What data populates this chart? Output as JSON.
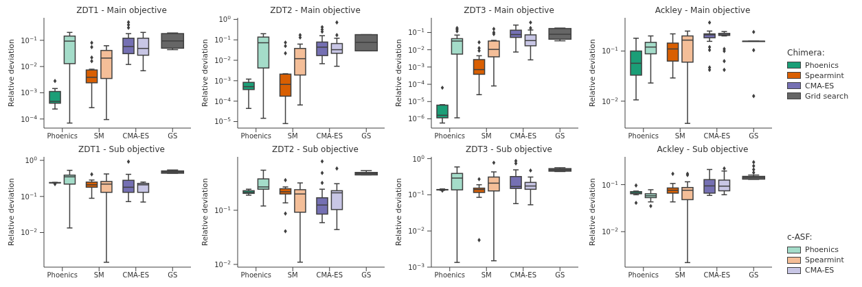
{
  "chart_data": [
    {
      "type": "box",
      "title": "ZDT1 - Main objective",
      "ylabel": "Relative deviation",
      "categories": [
        "Phoenics",
        "SM",
        "CMA-ES",
        "GS"
      ],
      "log": true,
      "ylim": [
        4.5e-05,
        0.72
      ],
      "yticks": [
        {
          "value": 0.0001,
          "label": "10$^{−4}$"
        },
        {
          "value": 0.001,
          "label": "10$^{−3}$"
        },
        {
          "value": 0.01,
          "label": "10$^{−2}$"
        },
        {
          "value": 0.1,
          "label": "10$^{−1}$"
        }
      ],
      "series": [
        {
          "color": "#1b9e77",
          "boxes": [
            {
              "low": 0.00024,
              "q1": 0.0004,
              "median": 0.00047,
              "q3": 0.00112,
              "high": 0.00145,
              "outliers": [
                0.0028
              ]
            },
            null,
            null,
            null
          ]
        },
        {
          "color": "#d95f02",
          "boxes": [
            null,
            {
              "low": 0.00027,
              "q1": 0.0024,
              "median": 0.0039,
              "q3": 0.0074,
              "high": 0.0079,
              "outliers": [
                0.08,
                0.055,
                0.022,
                0.016
              ]
            },
            null,
            null
          ]
        },
        {
          "color": "#7570b3",
          "boxes": [
            null,
            null,
            {
              "low": 0.012,
              "q1": 0.031,
              "median": 0.058,
              "q3": 0.12,
              "high": 0.18,
              "outliers": [
                0.49,
                0.39,
                0.3
              ]
            },
            null
          ]
        },
        {
          "color": "#666666",
          "boxes": [
            null,
            null,
            null,
            {
              "low": 0.044,
              "q1": 0.05,
              "median": 0.095,
              "q3": 0.18,
              "high": 0.19
            }
          ]
        },
        {
          "color": "#a4dcc9",
          "boxes": [
            {
              "low": 7e-05,
              "q1": 0.0129,
              "median": 0.093,
              "q3": 0.145,
              "high": 0.2
            },
            null,
            null,
            null
          ]
        },
        {
          "color": "#f4be98",
          "boxes": [
            null,
            {
              "low": 9.5e-05,
              "q1": 0.0035,
              "median": 0.021,
              "q3": 0.041,
              "high": 0.062
            },
            null,
            null
          ]
        },
        {
          "color": "#c8c6e5",
          "boxes": [
            null,
            null,
            {
              "low": 0.0069,
              "q1": 0.027,
              "median": 0.049,
              "q3": 0.12,
              "high": 0.2
            },
            null
          ]
        }
      ]
    },
    {
      "type": "box",
      "title": "ZDT2 - Main objective",
      "ylabel": "Relative deviation",
      "categories": [
        "Phoenics",
        "SM",
        "CMA-ES",
        "GS"
      ],
      "log": true,
      "ylim": [
        4.8e-06,
        1.2
      ],
      "yticks": [
        {
          "value": 1e-05,
          "label": "10$^{−5}$"
        },
        {
          "value": 0.0001,
          "label": "10$^{−4}$"
        },
        {
          "value": 0.001,
          "label": "10$^{−3}$"
        },
        {
          "value": 0.01,
          "label": "10$^{−2}$"
        },
        {
          "value": 0.1,
          "label": "10$^{−1}$"
        },
        {
          "value": 1,
          "label": "10$^{0}$"
        }
      ],
      "series": [
        {
          "color": "#1b9e77",
          "boxes": [
            {
              "low": 4.4e-05,
              "q1": 0.00037,
              "median": 0.00051,
              "q3": 0.00083,
              "high": 0.0012
            },
            null,
            null,
            null
          ]
        },
        {
          "color": "#d95f02",
          "boxes": [
            null,
            {
              "low": 8e-06,
              "q1": 0.000175,
              "median": 0.00066,
              "q3": 0.0021,
              "high": 0.0022,
              "outliers": [
                0.074,
                0.05,
                0.022
              ]
            },
            null,
            null
          ]
        },
        {
          "color": "#7570b3",
          "boxes": [
            null,
            null,
            {
              "low": 0.0068,
              "q1": 0.017,
              "median": 0.044,
              "q3": 0.078,
              "high": 0.16,
              "outliers": [
                0.42,
                0.32,
                0.25
              ]
            },
            null
          ]
        },
        {
          "color": "#666666",
          "boxes": [
            null,
            null,
            null,
            {
              "low": 0.029,
              "q1": 0.029,
              "median": 0.076,
              "q3": 0.18,
              "high": 0.18
            }
          ]
        },
        {
          "color": "#a4dcc9",
          "boxes": [
            {
              "low": 1.45e-05,
              "q1": 0.0042,
              "median": 0.072,
              "q3": 0.137,
              "high": 0.2
            },
            null,
            null,
            null
          ]
        },
        {
          "color": "#f4be98",
          "boxes": [
            null,
            {
              "low": 6.5e-05,
              "q1": 0.0019,
              "median": 0.012,
              "q3": 0.038,
              "high": 0.062,
              "outliers": [
                0.17,
                0.13
              ]
            },
            null,
            null
          ]
        },
        {
          "color": "#c8c6e5",
          "boxes": [
            null,
            null,
            {
              "low": 0.0051,
              "q1": 0.022,
              "median": 0.033,
              "q3": 0.066,
              "high": 0.12,
              "outliers": [
                0.71,
                0.17
              ]
            },
            null
          ]
        }
      ]
    },
    {
      "type": "box",
      "title": "ZDT3 - Main objective",
      "ylabel": "Relative deviation",
      "categories": [
        "Phoenics",
        "SM",
        "CMA-ES",
        "GS"
      ],
      "log": true,
      "ylim": [
        2.9e-07,
        0.71
      ],
      "yticks": [
        {
          "value": 1e-06,
          "label": "10$^{−6}$"
        },
        {
          "value": 1e-05,
          "label": "10$^{−5}$"
        },
        {
          "value": 0.0001,
          "label": "10$^{−4}$"
        },
        {
          "value": 0.001,
          "label": "10$^{−3}$"
        },
        {
          "value": 0.01,
          "label": "10$^{−2}$"
        },
        {
          "value": 0.1,
          "label": "10$^{−1}$"
        }
      ],
      "series": [
        {
          "color": "#1b9e77",
          "boxes": [
            {
              "low": 5.7e-07,
              "q1": 1.14e-06,
              "median": 1.6e-06,
              "q3": 6.2e-06,
              "high": 6.6e-06,
              "outliers": [
                6.3e-05
              ]
            },
            null,
            null,
            null
          ]
        },
        {
          "color": "#d95f02",
          "boxes": [
            null,
            {
              "low": 2.5e-05,
              "q1": 0.00038,
              "median": 0.00071,
              "q3": 0.0027,
              "high": 0.0045,
              "outliers": [
                0.027,
                0.0124,
                0.0089
              ]
            },
            null,
            null
          ]
        },
        {
          "color": "#7570b3",
          "boxes": [
            null,
            null,
            {
              "low": 0.0074,
              "q1": 0.052,
              "median": 0.076,
              "q3": 0.136,
              "high": 0.27
            },
            null
          ]
        },
        {
          "color": "#666666",
          "boxes": [
            null,
            null,
            null,
            {
              "low": 0.033,
              "q1": 0.041,
              "median": 0.079,
              "q3": 0.17,
              "high": 0.18
            }
          ]
        },
        {
          "color": "#a4dcc9",
          "boxes": [
            {
              "low": 1.14e-06,
              "q1": 0.0056,
              "median": 0.032,
              "q3": 0.044,
              "high": 0.071,
              "outliers": [
                0.18,
                0.15,
                0.12
              ]
            },
            null,
            null,
            null
          ]
        },
        {
          "color": "#f4be98",
          "boxes": [
            null,
            {
              "low": 8e-05,
              "q1": 0.0039,
              "median": 0.0105,
              "q3": 0.032,
              "high": 0.035,
              "outliers": [
                0.16,
                0.1,
                0.081
              ]
            },
            null,
            null
          ]
        },
        {
          "color": "#c8c6e5",
          "boxes": [
            null,
            null,
            {
              "low": 0.0026,
              "q1": 0.017,
              "median": 0.034,
              "q3": 0.073,
              "high": 0.14,
              "outliers": [
                0.38,
                0.18
              ]
            },
            null
          ]
        }
      ]
    },
    {
      "type": "box",
      "title": "Ackley - Main objective",
      "ylabel": "Relative deviation",
      "categories": [
        "Phoenics",
        "SM",
        "CMA-ES",
        "GS"
      ],
      "log": true,
      "ylim": [
        0.0029,
        0.46
      ],
      "yticks": [
        {
          "value": 0.01,
          "label": "10$^{−2}$"
        },
        {
          "value": 0.1,
          "label": "10$^{−1}$"
        }
      ],
      "legend": "right",
      "legend_title": "Chimera:",
      "series": [
        {
          "name": "Phoenics",
          "color": "#1b9e77",
          "boxes": [
            {
              "low": 0.0106,
              "q1": 0.033,
              "median": 0.057,
              "q3": 0.1,
              "high": 0.18
            },
            null,
            null,
            null
          ]
        },
        {
          "name": "Spearmint",
          "color": "#d95f02",
          "boxes": [
            null,
            {
              "low": 0.029,
              "q1": 0.063,
              "median": 0.11,
              "q3": 0.144,
              "high": 0.22
            },
            null,
            null
          ]
        },
        {
          "name": "CMA-ES",
          "color": "#7570b3",
          "boxes": [
            null,
            null,
            {
              "low": 0.156,
              "q1": 0.184,
              "median": 0.21,
              "q3": 0.22,
              "high": 0.25,
              "outliers": [
                0.37,
                0.12,
                0.105,
                0.047,
                0.042
              ]
            },
            null
          ]
        },
        {
          "name": "Grid search",
          "color": "#666666",
          "boxes": [
            null,
            null,
            null,
            {
              "low": 0.157,
              "q1": 0.157,
              "median": 0.157,
              "q3": 0.157,
              "high": 0.157,
              "outliers": [
                0.24,
                0.104,
                0.0126
              ]
            }
          ]
        },
        {
          "color": "#a4dcc9",
          "boxes": [
            {
              "low": 0.023,
              "q1": 0.088,
              "median": 0.12,
              "q3": 0.149,
              "high": 0.2
            },
            null,
            null,
            null
          ]
        },
        {
          "color": "#f4be98",
          "boxes": [
            null,
            {
              "low": 0.0036,
              "q1": 0.06,
              "median": 0.165,
              "q3": 0.2,
              "high": 0.25
            },
            null,
            null
          ]
        },
        {
          "color": "#c8c6e5",
          "boxes": [
            null,
            null,
            {
              "low": 0.2,
              "q1": 0.205,
              "median": 0.215,
              "q3": 0.225,
              "high": 0.245,
              "outliers": [
                0.11,
                0.1,
                0.063,
                0.042
              ]
            },
            null
          ]
        }
      ]
    },
    {
      "type": "box",
      "title": "ZDT1 - Sub objective",
      "ylabel": "Relative deviation",
      "categories": [
        "Phoenics",
        "SM",
        "CMA-ES",
        "GS"
      ],
      "log": true,
      "ylim": [
        0.0011,
        1.25
      ],
      "yticks": [
        {
          "value": 0.01,
          "label": "10$^{−2}$"
        },
        {
          "value": 0.1,
          "label": "10$^{−1}$"
        },
        {
          "value": 1,
          "label": "10$^{0}$"
        }
      ],
      "series": [
        {
          "color": "#1b9e77",
          "boxes": [
            {
              "low": 0.235,
              "q1": 0.237,
              "median": 0.24,
              "q3": 0.243,
              "high": 0.245,
              "outliers": [
                0.22
              ]
            },
            null,
            null,
            null
          ]
        },
        {
          "color": "#d95f02",
          "boxes": [
            null,
            {
              "low": 0.089,
              "q1": 0.18,
              "median": 0.21,
              "q3": 0.25,
              "high": 0.285,
              "outliers": [
                0.41
              ]
            },
            null,
            null
          ]
        },
        {
          "color": "#7570b3",
          "boxes": [
            null,
            null,
            {
              "low": 0.072,
              "q1": 0.13,
              "median": 0.18,
              "q3": 0.28,
              "high": 0.41,
              "outliers": [
                0.92
              ]
            },
            null
          ]
        },
        {
          "color": "#666666",
          "boxes": [
            null,
            null,
            null,
            {
              "low": 0.44,
              "q1": 0.44,
              "median": 0.48,
              "q3": 0.51,
              "high": 0.54
            }
          ]
        },
        {
          "color": "#a4dcc9",
          "boxes": [
            {
              "low": 0.0134,
              "q1": 0.22,
              "median": 0.35,
              "q3": 0.39,
              "high": 0.53
            },
            null,
            null,
            null
          ]
        },
        {
          "color": "#f4be98",
          "boxes": [
            null,
            {
              "low": 0.0015,
              "q1": 0.13,
              "median": 0.22,
              "q3": 0.26,
              "high": 0.42
            },
            null,
            null
          ]
        },
        {
          "color": "#c8c6e5",
          "boxes": [
            null,
            null,
            {
              "low": 0.07,
              "q1": 0.13,
              "median": 0.21,
              "q3": 0.23,
              "high": 0.25
            },
            null
          ]
        }
      ]
    },
    {
      "type": "box",
      "title": "ZDT2 - Sub objective",
      "ylabel": "Relative deviation",
      "categories": [
        "Phoenics",
        "SM",
        "CMA-ES",
        "GS"
      ],
      "log": true,
      "ylim": [
        0.0089,
        0.97
      ],
      "yticks": [
        {
          "value": 0.01,
          "label": "10$^{−2}$"
        },
        {
          "value": 0.1,
          "label": "10$^{−1}$"
        }
      ],
      "series": [
        {
          "color": "#1b9e77",
          "boxes": [
            {
              "low": 0.19,
              "q1": 0.205,
              "median": 0.215,
              "q3": 0.23,
              "high": 0.245
            },
            null,
            null,
            null
          ]
        },
        {
          "color": "#d95f02",
          "boxes": [
            null,
            {
              "low": 0.137,
              "q1": 0.2,
              "median": 0.22,
              "q3": 0.25,
              "high": 0.27,
              "outliers": [
                0.36,
                0.087,
                0.041
              ]
            },
            null,
            null
          ]
        },
        {
          "color": "#7570b3",
          "boxes": [
            null,
            null,
            {
              "low": 0.059,
              "q1": 0.085,
              "median": 0.125,
              "q3": 0.17,
              "high": 0.245,
              "outliers": [
                0.8,
                0.49,
                0.32
              ]
            },
            null
          ]
        },
        {
          "color": "#666666",
          "boxes": [
            null,
            null,
            null,
            {
              "low": 0.45,
              "q1": 0.45,
              "median": 0.48,
              "q3": 0.5,
              "high": 0.54
            }
          ]
        },
        {
          "color": "#a4dcc9",
          "boxes": [
            {
              "low": 0.12,
              "q1": 0.245,
              "median": 0.27,
              "q3": 0.38,
              "high": 0.55
            },
            null,
            null,
            null
          ]
        },
        {
          "color": "#f4be98",
          "boxes": [
            null,
            {
              "low": 0.011,
              "q1": 0.092,
              "median": 0.2,
              "q3": 0.24,
              "high": 0.32
            },
            null,
            null
          ]
        },
        {
          "color": "#c8c6e5",
          "boxes": [
            null,
            null,
            {
              "low": 0.044,
              "q1": 0.103,
              "median": 0.21,
              "q3": 0.23,
              "high": 0.31,
              "outliers": [
                0.59
              ]
            },
            null
          ]
        }
      ]
    },
    {
      "type": "box",
      "title": "ZDT3 - Sub objective",
      "ylabel": "Relative deviation",
      "categories": [
        "Phoenics",
        "SM",
        "CMA-ES",
        "GS"
      ],
      "log": true,
      "ylim": [
        0.001,
        1.12
      ],
      "yticks": [
        {
          "value": 0.001,
          "label": "10$^{−3}$"
        },
        {
          "value": 0.01,
          "label": "10$^{−2}$"
        },
        {
          "value": 0.1,
          "label": "10$^{−1}$"
        },
        {
          "value": 1,
          "label": "10$^{0}$"
        }
      ],
      "series": [
        {
          "color": "#1b9e77",
          "boxes": [
            {
              "low": 0.133,
              "q1": 0.136,
              "median": 0.137,
              "q3": 0.14,
              "high": 0.145,
              "outliers": [
                0.13
              ]
            },
            null,
            null,
            null
          ]
        },
        {
          "color": "#d95f02",
          "boxes": [
            null,
            {
              "low": 0.085,
              "q1": 0.116,
              "median": 0.14,
              "q3": 0.153,
              "high": 0.19,
              "outliers": [
                0.27,
                0.0056
              ]
            },
            null,
            null
          ]
        },
        {
          "color": "#7570b3",
          "boxes": [
            null,
            null,
            {
              "low": 0.057,
              "q1": 0.15,
              "median": 0.17,
              "q3": 0.32,
              "high": 0.49,
              "outliers": [
                0.86,
                0.74
              ]
            },
            null
          ]
        },
        {
          "color": "#666666",
          "boxes": [
            null,
            null,
            null,
            {
              "low": 0.44,
              "q1": 0.45,
              "median": 0.49,
              "q3": 0.53,
              "high": 0.56
            }
          ]
        },
        {
          "color": "#a4dcc9",
          "boxes": [
            {
              "low": 0.00135,
              "q1": 0.137,
              "median": 0.29,
              "q3": 0.39,
              "high": 0.59
            },
            null,
            null,
            null
          ]
        },
        {
          "color": "#f4be98",
          "boxes": [
            null,
            {
              "low": 0.0015,
              "q1": 0.128,
              "median": 0.21,
              "q3": 0.31,
              "high": 0.43,
              "outliers": [
                0.77
              ]
            },
            null,
            null
          ]
        },
        {
          "color": "#c8c6e5",
          "boxes": [
            null,
            null,
            {
              "low": 0.053,
              "q1": 0.142,
              "median": 0.175,
              "q3": 0.22,
              "high": 0.31,
              "outliers": [
                0.47
              ]
            },
            null
          ]
        }
      ]
    },
    {
      "type": "box",
      "title": "Ackley - Sub objective",
      "ylabel": "Relative deviation",
      "categories": [
        "Phoenics",
        "SM",
        "CMA-ES",
        "GS"
      ],
      "log": true,
      "ylim": [
        0.00176,
        0.39
      ],
      "yticks": [
        {
          "value": 0.01,
          "label": "10$^{−2}$"
        },
        {
          "value": 0.1,
          "label": "10$^{−1}$"
        }
      ],
      "legend": "bottom right",
      "legend_title": "c-ASF:",
      "series": [
        {
          "color": "#1b9e77",
          "boxes": [
            {
              "low": 0.061,
              "q1": 0.064,
              "median": 0.066,
              "q3": 0.071,
              "high": 0.073,
              "outliers": [
                0.096,
                0.041
              ]
            },
            null,
            null,
            null
          ]
        },
        {
          "color": "#d95f02",
          "boxes": [
            null,
            {
              "low": 0.043,
              "q1": 0.066,
              "median": 0.076,
              "q3": 0.085,
              "high": 0.106,
              "outliers": [
                0.17
              ]
            },
            null,
            null
          ]
        },
        {
          "color": "#7570b3",
          "boxes": [
            null,
            null,
            {
              "low": 0.059,
              "q1": 0.066,
              "median": 0.094,
              "q3": 0.128,
              "high": 0.21
            },
            null
          ]
        },
        {
          "color": "#666666",
          "boxes": [
            null,
            null,
            null,
            {
              "low": 0.13,
              "q1": 0.131,
              "median": 0.144,
              "q3": 0.15,
              "high": 0.16,
              "outliers": [
                0.3,
                0.25,
                0.21,
                0.18
              ]
            }
          ]
        },
        {
          "name": "Phoenics",
          "color": "#a4dcc9",
          "boxes": [
            {
              "low": 0.043,
              "q1": 0.053,
              "median": 0.058,
              "q3": 0.064,
              "high": 0.078,
              "outliers": [
                0.035
              ]
            },
            null,
            null,
            null
          ]
        },
        {
          "name": "Spearmint",
          "color": "#f4be98",
          "boxes": [
            null,
            {
              "low": 0.0022,
              "q1": 0.048,
              "median": 0.076,
              "q3": 0.087,
              "high": 0.115,
              "outliers": [
                0.17,
                0.16
              ]
            },
            null,
            null
          ]
        },
        {
          "name": "CMA-ES",
          "color": "#c8c6e5",
          "boxes": [
            null,
            null,
            {
              "low": 0.061,
              "q1": 0.074,
              "median": 0.093,
              "q3": 0.125,
              "high": 0.195,
              "outliers": [
                0.22
              ]
            },
            null
          ]
        }
      ]
    }
  ]
}
